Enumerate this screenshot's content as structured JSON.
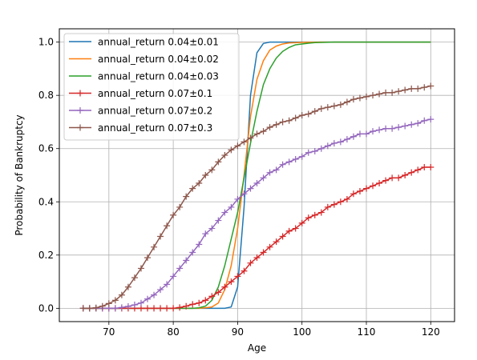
{
  "chart_data": {
    "type": "line",
    "title": "",
    "xlabel": "Age",
    "ylabel": "Probability of Bankruptcy",
    "xlim": [
      62.3,
      123.7
    ],
    "ylim": [
      -0.05,
      1.05
    ],
    "xticks": [
      70,
      80,
      90,
      100,
      110,
      120
    ],
    "yticks": [
      0.0,
      0.2,
      0.4,
      0.6,
      0.8,
      1.0
    ],
    "xtick_labels": [
      "70",
      "80",
      "90",
      "100",
      "110",
      "120"
    ],
    "ytick_labels": [
      "0.0",
      "0.2",
      "0.4",
      "0.6",
      "0.8",
      "1.0"
    ],
    "grid": true,
    "legend_position": "top-left",
    "series": [
      {
        "name": "annual_return 0.04±0.01",
        "color": "#1f77b4",
        "marker": "none",
        "x": [
          66,
          85,
          87,
          88,
          89,
          90,
          91,
          92,
          93,
          94,
          95,
          96,
          97,
          100,
          120
        ],
        "y": [
          0,
          0,
          0,
          0,
          0.005,
          0.08,
          0.38,
          0.8,
          0.96,
          0.995,
          1.0,
          1.0,
          1.0,
          1.0,
          1.0
        ]
      },
      {
        "name": "annual_return 0.04±0.02",
        "color": "#ff7f0e",
        "marker": "none",
        "x": [
          66,
          84,
          85,
          86,
          87,
          88,
          89,
          90,
          91,
          92,
          93,
          94,
          95,
          96,
          97,
          98,
          100,
          103,
          120
        ],
        "y": [
          0,
          0,
          0.002,
          0.005,
          0.02,
          0.07,
          0.16,
          0.3,
          0.5,
          0.72,
          0.86,
          0.93,
          0.97,
          0.985,
          0.993,
          0.997,
          0.999,
          1.0,
          1.0
        ]
      },
      {
        "name": "annual_return 0.04±0.03",
        "color": "#2ca02c",
        "marker": "none",
        "x": [
          66,
          83,
          84,
          85,
          86,
          87,
          88,
          89,
          90,
          91,
          92,
          93,
          94,
          95,
          96,
          97,
          98,
          99,
          100,
          101,
          102,
          105,
          120
        ],
        "y": [
          0,
          0,
          0.002,
          0.008,
          0.03,
          0.08,
          0.16,
          0.26,
          0.36,
          0.49,
          0.62,
          0.74,
          0.84,
          0.9,
          0.94,
          0.965,
          0.98,
          0.99,
          0.993,
          0.996,
          0.998,
          1.0,
          1.0
        ]
      },
      {
        "name": "annual_return 0.07±0.1",
        "color": "#d62728",
        "marker": "plus",
        "x": [
          66,
          67,
          68,
          69,
          70,
          71,
          72,
          73,
          74,
          75,
          76,
          77,
          78,
          79,
          80,
          81,
          82,
          83,
          84,
          85,
          86,
          87,
          88,
          89,
          90,
          91,
          92,
          93,
          94,
          95,
          96,
          97,
          98,
          99,
          100,
          101,
          102,
          103,
          104,
          105,
          106,
          107,
          108,
          109,
          110,
          111,
          112,
          113,
          114,
          115,
          116,
          117,
          118,
          119,
          120
        ],
        "y": [
          0,
          0,
          0,
          0,
          0,
          0,
          0,
          0,
          0,
          0,
          0,
          0,
          0,
          0,
          0,
          0.003,
          0.008,
          0.015,
          0.02,
          0.03,
          0.045,
          0.06,
          0.08,
          0.1,
          0.12,
          0.14,
          0.17,
          0.19,
          0.21,
          0.23,
          0.25,
          0.27,
          0.29,
          0.3,
          0.32,
          0.34,
          0.35,
          0.36,
          0.38,
          0.39,
          0.4,
          0.41,
          0.43,
          0.44,
          0.45,
          0.46,
          0.47,
          0.48,
          0.49,
          0.49,
          0.5,
          0.51,
          0.52,
          0.53,
          0.53
        ]
      },
      {
        "name": "annual_return 0.07±0.2",
        "color": "#9467bd",
        "marker": "plus",
        "x": [
          66,
          67,
          68,
          69,
          70,
          71,
          72,
          73,
          74,
          75,
          76,
          77,
          78,
          79,
          80,
          81,
          82,
          83,
          84,
          85,
          86,
          87,
          88,
          89,
          90,
          91,
          92,
          93,
          94,
          95,
          96,
          97,
          98,
          99,
          100,
          101,
          102,
          103,
          104,
          105,
          106,
          107,
          108,
          109,
          110,
          111,
          112,
          113,
          114,
          115,
          116,
          117,
          118,
          119,
          120
        ],
        "y": [
          0,
          0,
          0,
          0,
          0,
          0,
          0.003,
          0.007,
          0.013,
          0.02,
          0.035,
          0.05,
          0.07,
          0.09,
          0.12,
          0.15,
          0.18,
          0.21,
          0.24,
          0.28,
          0.3,
          0.33,
          0.36,
          0.38,
          0.41,
          0.43,
          0.45,
          0.47,
          0.49,
          0.51,
          0.52,
          0.54,
          0.55,
          0.56,
          0.57,
          0.585,
          0.59,
          0.6,
          0.61,
          0.62,
          0.625,
          0.635,
          0.645,
          0.655,
          0.655,
          0.665,
          0.67,
          0.675,
          0.675,
          0.68,
          0.685,
          0.69,
          0.695,
          0.705,
          0.71
        ]
      },
      {
        "name": "annual_return 0.07±0.3",
        "color": "#8c564b",
        "marker": "plus",
        "x": [
          66,
          67,
          68,
          69,
          70,
          71,
          72,
          73,
          74,
          75,
          76,
          77,
          78,
          79,
          80,
          81,
          82,
          83,
          84,
          85,
          86,
          87,
          88,
          89,
          90,
          91,
          92,
          93,
          94,
          95,
          96,
          97,
          98,
          99,
          100,
          101,
          102,
          103,
          104,
          105,
          106,
          107,
          108,
          109,
          110,
          111,
          112,
          113,
          114,
          115,
          116,
          117,
          118,
          119,
          120
        ],
        "y": [
          0,
          0,
          0.002,
          0.008,
          0.018,
          0.03,
          0.05,
          0.08,
          0.115,
          0.15,
          0.19,
          0.23,
          0.27,
          0.31,
          0.35,
          0.38,
          0.42,
          0.45,
          0.47,
          0.5,
          0.52,
          0.55,
          0.575,
          0.595,
          0.61,
          0.625,
          0.64,
          0.655,
          0.665,
          0.68,
          0.69,
          0.7,
          0.705,
          0.715,
          0.725,
          0.73,
          0.74,
          0.75,
          0.755,
          0.76,
          0.765,
          0.775,
          0.785,
          0.79,
          0.795,
          0.8,
          0.805,
          0.81,
          0.81,
          0.815,
          0.82,
          0.825,
          0.825,
          0.83,
          0.835
        ]
      }
    ]
  }
}
